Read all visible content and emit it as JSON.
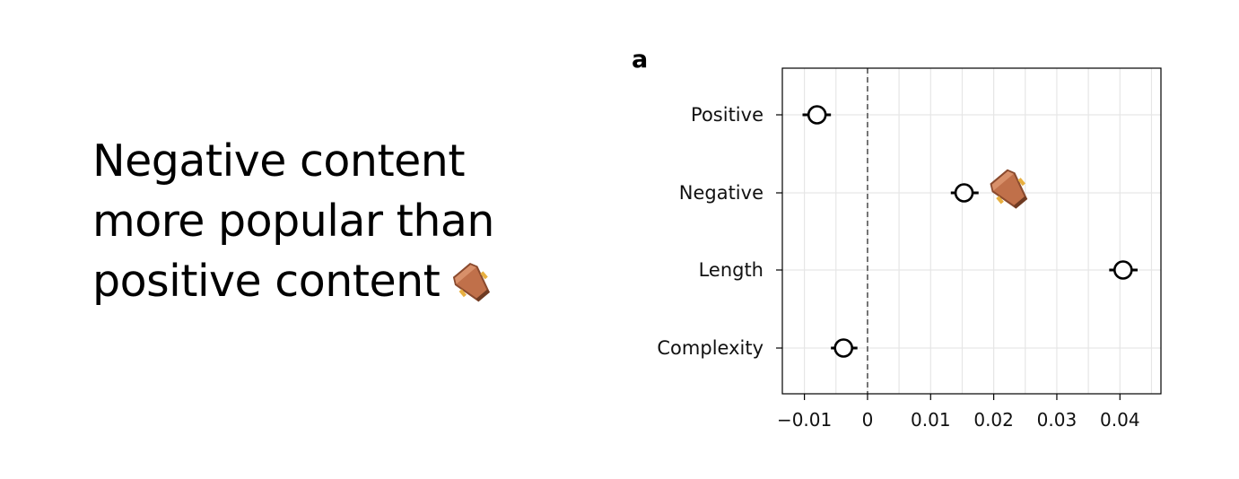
{
  "headline": {
    "line1": "Negative content",
    "line2": "more popular than",
    "line3": "positive content",
    "emoji_icon": "coffin-icon"
  },
  "chart_data": {
    "type": "scatter",
    "panel_label": "a",
    "categories": [
      "Positive",
      "Negative",
      "Length",
      "Complexity"
    ],
    "points": [
      {
        "label": "Positive",
        "estimate": -0.008,
        "ci_low": -0.0103,
        "ci_high": -0.0058
      },
      {
        "label": "Negative",
        "estimate": 0.0153,
        "ci_low": 0.0132,
        "ci_high": 0.0176
      },
      {
        "label": "Length",
        "estimate": 0.0405,
        "ci_low": 0.0383,
        "ci_high": 0.0428
      },
      {
        "label": "Complexity",
        "estimate": -0.0038,
        "ci_low": -0.0058,
        "ci_high": -0.0016
      }
    ],
    "xlim": [
      -0.0135,
      0.0465
    ],
    "ticks": [
      -0.01,
      0,
      0.01,
      0.02,
      0.03,
      0.04
    ],
    "tick_labels": [
      "−0.01",
      "0",
      "0.01",
      "0.02",
      "0.03",
      "0.04"
    ],
    "reference_line": 0,
    "grid": true,
    "xlabel": "",
    "ylabel": "",
    "annotation_icon": "coffin-icon",
    "colors": {
      "point_stroke": "#000000",
      "point_fill": "#ffffff",
      "grid": "#e6e6e6",
      "reference": "#555555",
      "coffin_body": "#c0704a",
      "coffin_dark": "#8a4a2e",
      "coffin_light": "#d8906a",
      "coffin_handle": "#e8b040"
    }
  }
}
